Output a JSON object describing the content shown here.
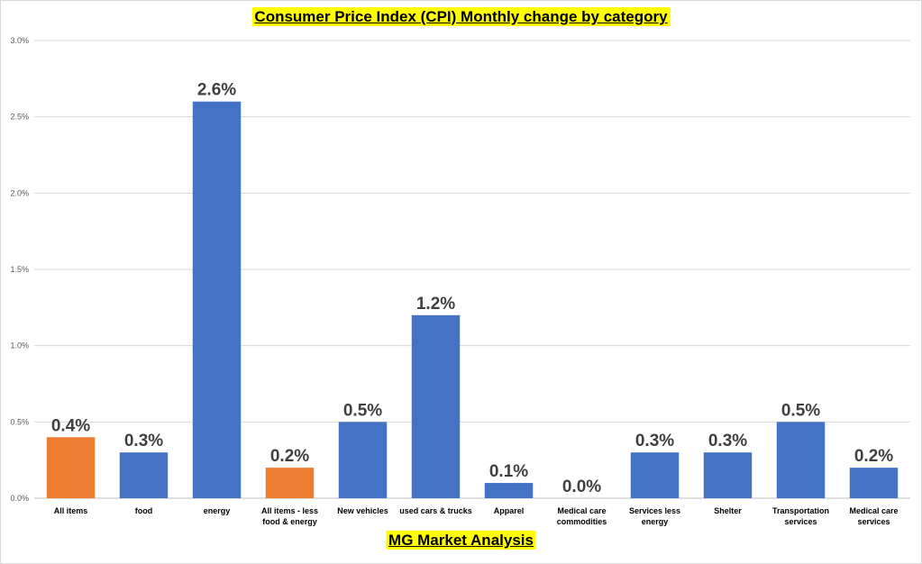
{
  "chart_data": {
    "type": "bar",
    "title": "Consumer Price Index (CPI) Monthly change by category",
    "footer": "MG Market Analysis",
    "categories": [
      [
        "All items"
      ],
      [
        "food"
      ],
      [
        "energy"
      ],
      [
        "All items - less",
        "food & energy"
      ],
      [
        "New vehicles"
      ],
      [
        "used cars & trucks"
      ],
      [
        "Apparel"
      ],
      [
        "Medical care",
        "commodities"
      ],
      [
        "Services less",
        "energy"
      ],
      [
        "Shelter"
      ],
      [
        "Transportation",
        "services"
      ],
      [
        "Medical care",
        "services"
      ]
    ],
    "values": [
      0.4,
      0.3,
      2.6,
      0.2,
      0.5,
      1.2,
      0.1,
      0.0,
      0.3,
      0.3,
      0.5,
      0.2
    ],
    "data_labels": [
      "0.4%",
      "0.3%",
      "2.6%",
      "0.2%",
      "0.5%",
      "1.2%",
      "0.1%",
      "0.0%",
      "0.3%",
      "0.3%",
      "0.5%",
      "0.2%"
    ],
    "bar_colors": [
      "#ed7d31",
      "#4472c4",
      "#4472c4",
      "#ed7d31",
      "#4472c4",
      "#4472c4",
      "#4472c4",
      "#4472c4",
      "#4472c4",
      "#4472c4",
      "#4472c4",
      "#4472c4"
    ],
    "ylim": [
      0,
      3.0
    ],
    "yticks": [
      0,
      0.5,
      1.0,
      1.5,
      2.0,
      2.5,
      3.0
    ],
    "ytick_labels": [
      "0.0%",
      "0.5%",
      "1.0%",
      "1.5%",
      "2.0%",
      "2.5%",
      "3.0%"
    ],
    "grid": true,
    "legend": "none"
  }
}
